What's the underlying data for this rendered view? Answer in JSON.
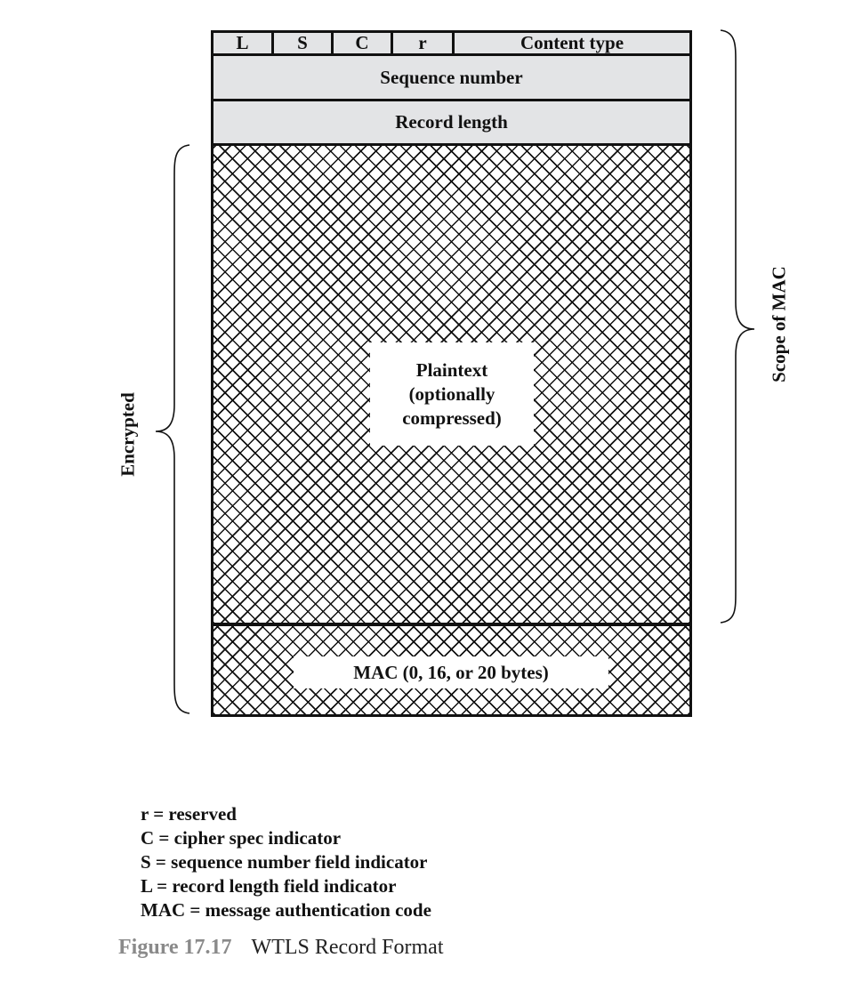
{
  "header_fields": {
    "flags": [
      "L",
      "S",
      "C",
      "r"
    ],
    "content_type": "Content type",
    "sequence_number": "Sequence number",
    "record_length": "Record length"
  },
  "body": {
    "plaintext_lines": [
      "Plaintext",
      "(optionally",
      "compressed)"
    ],
    "mac": "MAC (0, 16, or 20 bytes)"
  },
  "braces": {
    "left_label": "Encrypted",
    "right_label": "Scope of MAC"
  },
  "legend": [
    "r = reserved",
    "C = cipher spec indicator",
    "S = sequence number field indicator",
    "L = record length field indicator",
    "MAC = message authentication code"
  ],
  "caption": {
    "number": "Figure 17.17",
    "title": "WTLS Record Format"
  }
}
